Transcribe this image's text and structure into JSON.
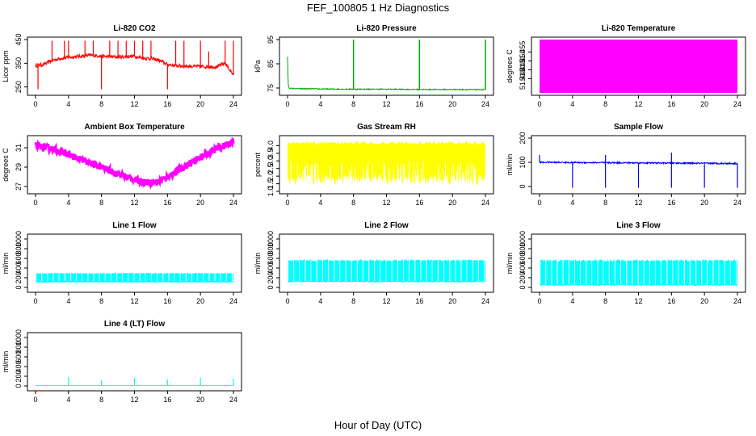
{
  "figure": {
    "title": "FEF_100805  1 Hz Diagnostics",
    "xlabel": "Hour of Day (UTC)"
  },
  "chart_data": [
    {
      "type": "line",
      "title": "Li-820 CO2",
      "ylabel": "Licor ppm",
      "color": "#ff0000",
      "xlim": [
        0,
        24
      ],
      "ylim": [
        225,
        450
      ],
      "xticks": [
        "0",
        "4",
        "8",
        "12",
        "16",
        "20",
        "24"
      ],
      "yticks": [
        250,
        350,
        450
      ],
      "series": [
        {
          "x": [
            0,
            1,
            2,
            3,
            4,
            5,
            6,
            7,
            8,
            9,
            10,
            11,
            12,
            13,
            14,
            15,
            16,
            17,
            18,
            19,
            20,
            21,
            22,
            23,
            24
          ],
          "y": [
            340,
            345,
            362,
            370,
            375,
            378,
            382,
            384,
            380,
            378,
            376,
            378,
            380,
            372,
            370,
            362,
            345,
            340,
            338,
            337,
            336,
            336,
            335,
            350,
            300
          ]
        }
      ],
      "spikes": [
        [
          0.3,
          240
        ],
        [
          2,
          445
        ],
        [
          3.5,
          445
        ],
        [
          4,
          445
        ],
        [
          6,
          445
        ],
        [
          7,
          445
        ],
        [
          8,
          240
        ],
        [
          9,
          445
        ],
        [
          10,
          445
        ],
        [
          11,
          445
        ],
        [
          12,
          445
        ],
        [
          13,
          445
        ],
        [
          14,
          445
        ],
        [
          16,
          240
        ],
        [
          17,
          445
        ],
        [
          18,
          445
        ],
        [
          20,
          445
        ],
        [
          21,
          400
        ],
        [
          23,
          445
        ],
        [
          24,
          445
        ]
      ]
    },
    {
      "type": "line",
      "title": "Li-820 Pressure",
      "ylabel": "kPa",
      "color": "#00aa00",
      "xlim": [
        0,
        24
      ],
      "ylim": [
        73,
        95
      ],
      "xticks": [
        "0",
        "4",
        "8",
        "12",
        "16",
        "20",
        "24"
      ],
      "yticks": [
        75,
        85,
        95
      ],
      "series": [
        {
          "x": [
            0,
            0.05,
            0.1,
            0.2,
            0.5,
            4,
            8,
            12,
            16,
            20,
            24
          ],
          "y": [
            88,
            80,
            76,
            75,
            74.8,
            74.6,
            74.5,
            74.5,
            74.4,
            74.4,
            74.3
          ]
        }
      ],
      "spikes": [
        [
          8,
          95
        ],
        [
          16,
          95
        ],
        [
          24,
          95
        ]
      ]
    },
    {
      "type": "area",
      "title": "Li-820 Temperature",
      "ylabel": "degrees C",
      "color": "#ff00ff",
      "xlim": [
        0,
        24
      ],
      "ylim": [
        51.432,
        51.462
      ],
      "xticks": [
        "0",
        "4",
        "8",
        "12",
        "16",
        "20",
        "24"
      ],
      "yticks": [
        51.44,
        51.445,
        51.45,
        51.455
      ],
      "ytick_labels": [
        "51.440",
        "51.445",
        "51.450",
        "51.455"
      ],
      "band": [
        51.432,
        51.462
      ]
    },
    {
      "type": "line",
      "title": "Ambient Box Temperature",
      "ylabel": "degrees C",
      "color": "#ff00ff",
      "xlim": [
        0,
        24
      ],
      "ylim": [
        26.5,
        32
      ],
      "xticks": [
        "0",
        "4",
        "8",
        "12",
        "16",
        "20",
        "24"
      ],
      "yticks": [
        27,
        29,
        31
      ],
      "series": [
        {
          "x": [
            0,
            2,
            4,
            6,
            8,
            10,
            12,
            13,
            14,
            15,
            16,
            18,
            20,
            22,
            24
          ],
          "y": [
            31.2,
            30.9,
            30.3,
            29.6,
            29.0,
            28.3,
            27.7,
            27.5,
            27.4,
            27.5,
            28.0,
            29.0,
            30.0,
            30.9,
            31.6
          ]
        }
      ],
      "noise": 0.35
    },
    {
      "type": "area",
      "title": "Gas Stream RH",
      "ylabel": "percent",
      "color": "#ffff00",
      "xlim": [
        0,
        24
      ],
      "ylim": [
        1.0,
        4.5
      ],
      "xticks": [
        "0",
        "4",
        "8",
        "12",
        "16",
        "20",
        "24"
      ],
      "yticks": [
        1.0,
        1.5,
        2.0,
        2.5,
        3.0,
        3.5,
        4.0
      ],
      "ytick_labels": [
        "1.0",
        "1.5",
        "2.0",
        "2.5",
        "3.0",
        "3.5",
        "4.0"
      ],
      "band": [
        1.4,
        4.3
      ]
    },
    {
      "type": "line",
      "title": "Sample Flow",
      "ylabel": "ml/min",
      "color": "#0000ff",
      "xlim": [
        0,
        24
      ],
      "ylim": [
        -20,
        200
      ],
      "xticks": [
        "0",
        "4",
        "8",
        "12",
        "16",
        "20",
        "24"
      ],
      "yticks": [
        0,
        100,
        200
      ],
      "series": [
        {
          "x": [
            0,
            24
          ],
          "y": [
            100,
            95
          ]
        }
      ],
      "spikes": [
        [
          0,
          130
        ],
        [
          4,
          -5
        ],
        [
          8,
          130
        ],
        [
          8,
          -5
        ],
        [
          12,
          -5
        ],
        [
          16,
          140
        ],
        [
          16,
          -5
        ],
        [
          20,
          -5
        ],
        [
          24,
          -5
        ]
      ]
    },
    {
      "type": "area",
      "title": "Line 1 Flow",
      "ylabel": "ml/min",
      "color": "#00ffff",
      "xlim": [
        0,
        24
      ],
      "ylim": [
        -50,
        1050
      ],
      "xticks": [
        "0",
        "4",
        "8",
        "12",
        "16",
        "20",
        "24"
      ],
      "yticks": [
        0,
        200,
        400,
        600,
        800,
        1000
      ],
      "band": [
        100,
        300
      ]
    },
    {
      "type": "area",
      "title": "Line 2 Flow",
      "ylabel": "ml/min",
      "color": "#00ffff",
      "xlim": [
        0,
        24
      ],
      "ylim": [
        -50,
        1050
      ],
      "xticks": [
        "0",
        "4",
        "8",
        "12",
        "16",
        "20",
        "24"
      ],
      "yticks": [
        0,
        200,
        400,
        600,
        800,
        1000
      ],
      "band": [
        100,
        580
      ]
    },
    {
      "type": "area",
      "title": "Line 3 Flow",
      "ylabel": "ml/min",
      "color": "#00ffff",
      "xlim": [
        0,
        24
      ],
      "ylim": [
        -50,
        1050
      ],
      "xticks": [
        "0",
        "4",
        "8",
        "12",
        "16",
        "20",
        "24"
      ],
      "yticks": [
        0,
        200,
        400,
        600,
        800,
        1000
      ],
      "band": [
        30,
        580
      ]
    },
    {
      "type": "line",
      "title": "Line 4 (LT) Flow",
      "ylabel": "ml/min",
      "color": "#00ffff",
      "xlim": [
        0,
        24
      ],
      "ylim": [
        -50,
        1050
      ],
      "xticks": [
        "0",
        "4",
        "8",
        "12",
        "16",
        "20",
        "24"
      ],
      "yticks": [
        0,
        200,
        400,
        600,
        800,
        1000
      ],
      "series": [
        {
          "x": [
            0,
            24
          ],
          "y": [
            10,
            10
          ]
        }
      ],
      "spikes": [
        [
          4,
          180
        ],
        [
          8,
          120
        ],
        [
          12,
          170
        ],
        [
          16,
          130
        ],
        [
          20,
          170
        ],
        [
          24,
          150
        ]
      ]
    }
  ]
}
